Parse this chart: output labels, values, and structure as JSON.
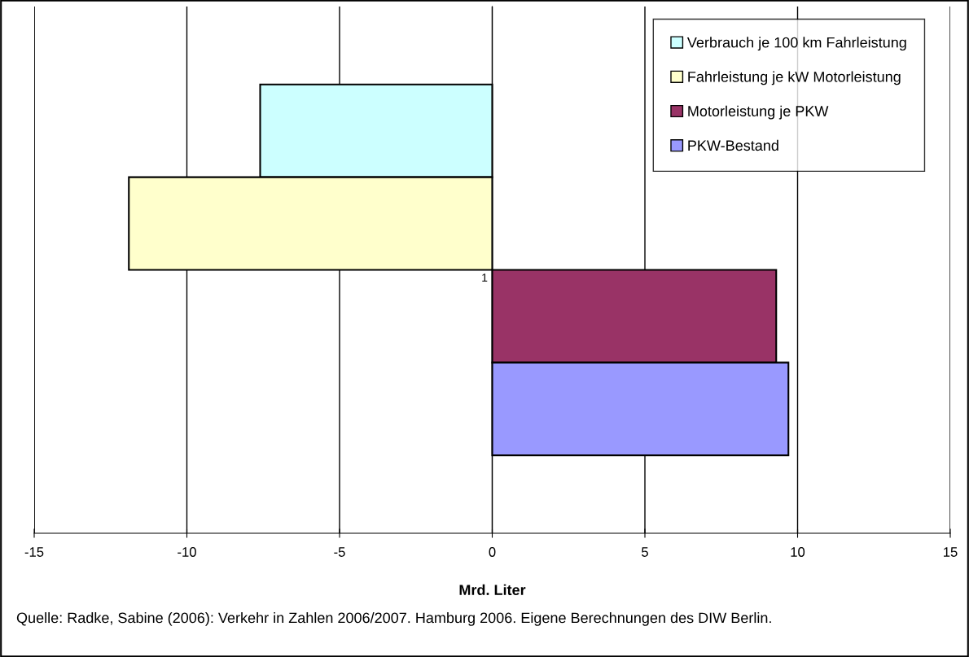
{
  "chart_data": {
    "type": "bar",
    "orientation": "horizontal",
    "xlabel": "Mrd. Liter",
    "categories": [
      "1"
    ],
    "series": [
      {
        "name": "Verbrauch je 100 km Fahrleistung",
        "color": "#ccffff",
        "values": [
          -7.6
        ]
      },
      {
        "name": "Fahrleistung je kW Motorleistung",
        "color": "#ffffcc",
        "values": [
          -11.9
        ]
      },
      {
        "name": "Motorleistung je PKW",
        "color": "#993366",
        "values": [
          9.3
        ]
      },
      {
        "name": "PKW-Bestand",
        "color": "#9999ff",
        "values": [
          9.7
        ]
      }
    ],
    "xlim": [
      -15,
      15
    ],
    "xticks": [
      -15,
      -10,
      -5,
      0,
      5,
      10,
      15
    ],
    "grid": "x",
    "legend": "top right",
    "annotations": [
      "Quelle: Radke, Sabine (2006): Verkehr in Zahlen 2006/2007. Hamburg 2006. Eigene Berechnungen des DIW Berlin."
    ]
  }
}
